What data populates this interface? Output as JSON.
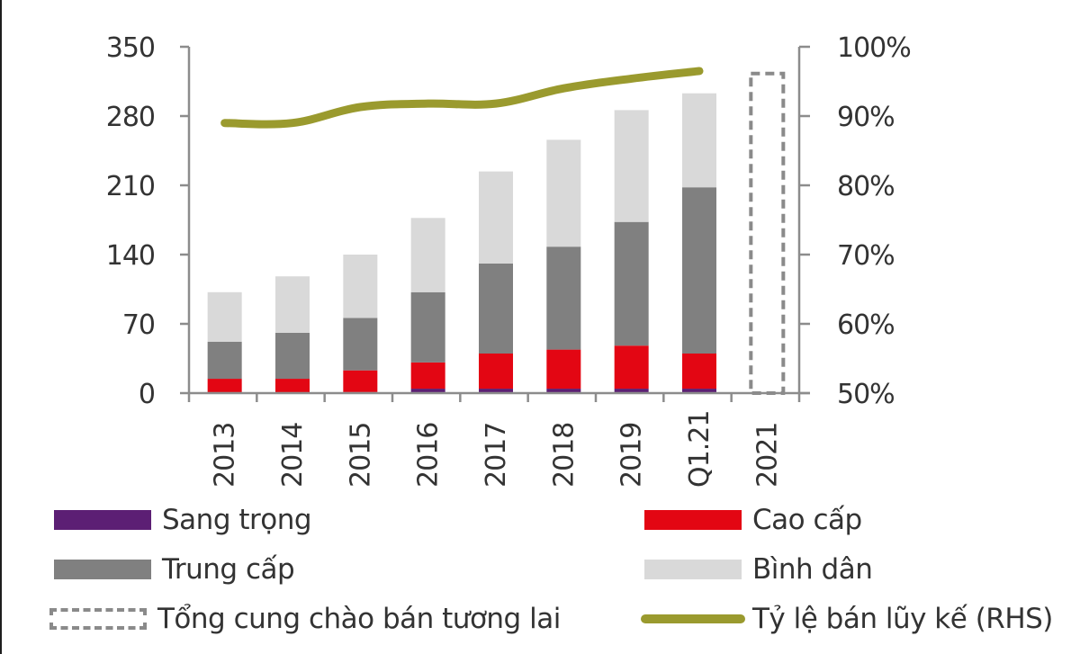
{
  "chart_data": {
    "type": "bar",
    "subtype": "stacked bar with line (secondary axis)",
    "categories": [
      "2013",
      "2014",
      "2015",
      "2016",
      "2017",
      "2018",
      "2019",
      "Q1.21",
      "2021"
    ],
    "series": [
      {
        "name": "Sang trọng",
        "color": "#5c1f74",
        "values": [
          0,
          0,
          1,
          4.5,
          4.5,
          4.5,
          4.5,
          4.5,
          null
        ]
      },
      {
        "name": "Cao cấp",
        "color": "#e30613",
        "values": [
          14.5,
          14.5,
          22,
          26.5,
          35.5,
          39.5,
          43.5,
          35.5,
          null
        ]
      },
      {
        "name": "Trung cấp",
        "color": "#808080",
        "values": [
          37.5,
          46.5,
          53,
          71,
          91,
          104,
          125,
          168,
          null
        ]
      },
      {
        "name": "Bình dân",
        "color": "#d9d9d9",
        "values": [
          50,
          57,
          64,
          75,
          93,
          108,
          113,
          95,
          null
        ]
      }
    ],
    "totals": [
      102,
      118,
      140,
      177,
      224,
      256,
      286,
      303,
      null
    ],
    "future_supply": {
      "name": "Tổng cung chào bán tương lai",
      "category": "2021",
      "value": 323,
      "style": "dashed outline",
      "color": "#8a8a8a"
    },
    "line_series": {
      "name": "Tỷ lệ bán lũy kế (RHS)",
      "color": "#9a9a2e",
      "axis": "right",
      "values": [
        89,
        89,
        91.3,
        91.8,
        91.8,
        94,
        95.4,
        96.5,
        null
      ],
      "unit": "%"
    },
    "left_axis": {
      "ticks": [
        "0",
        "70",
        "140",
        "210",
        "280",
        "350"
      ],
      "ylim": [
        0,
        350
      ]
    },
    "right_axis": {
      "ticks": [
        "50%",
        "60%",
        "70%",
        "80%",
        "90%",
        "100%"
      ],
      "ylim": [
        50,
        100
      ]
    },
    "title": "",
    "xlabel": "",
    "ylabel": "",
    "grid": false,
    "legend_position": "bottom"
  },
  "axis": {
    "left_ticks": [
      "0",
      "70",
      "140",
      "210",
      "280",
      "350"
    ],
    "right_ticks": [
      "50%",
      "60%",
      "70%",
      "80%",
      "90%",
      "100%"
    ],
    "x_labels": [
      "2013",
      "2014",
      "2015",
      "2016",
      "2017",
      "2018",
      "2019",
      "Q1.21",
      "2021"
    ]
  },
  "legend": {
    "sang_trong": "Sang trọng",
    "cao_cap": "Cao cấp",
    "trung_cap": "Trung cấp",
    "binh_dan": "Bình dân",
    "future_supply": "Tổng cung chào bán tương lai",
    "sales_rate": "Tỷ lệ bán lũy kế (RHS)"
  }
}
